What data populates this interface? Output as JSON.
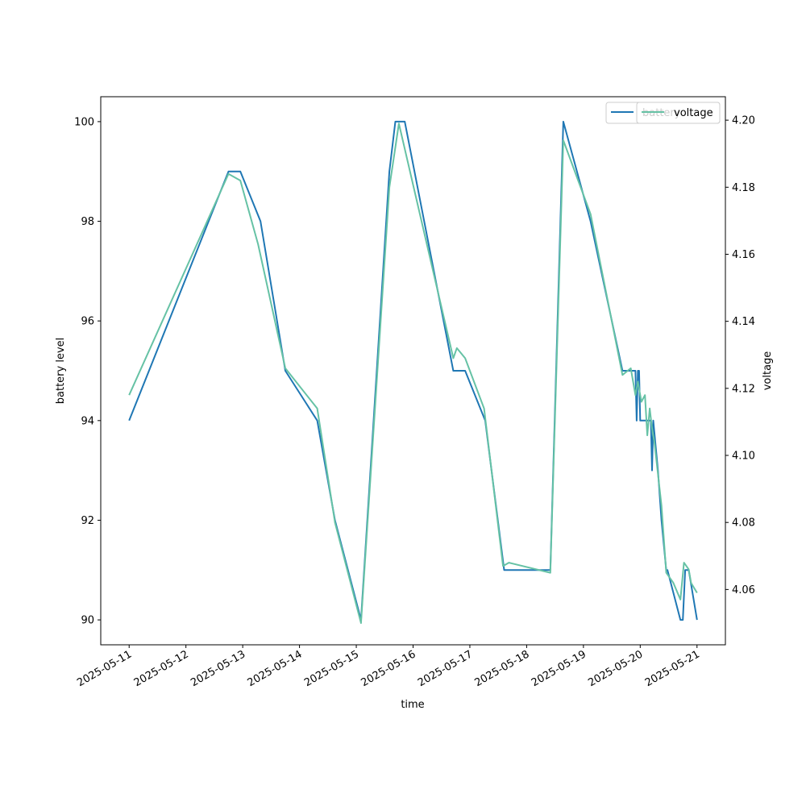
{
  "chart_data": {
    "type": "line",
    "xlabel": "time",
    "ylabel": "battery level",
    "y2label": "voltage",
    "x_ticks": [
      "2025-05-11",
      "2025-05-12",
      "2025-05-13",
      "2025-05-14",
      "2025-05-15",
      "2025-05-16",
      "2025-05-17",
      "2025-05-18",
      "2025-05-19",
      "2025-05-20",
      "2025-05-21"
    ],
    "xlim": [
      "2025-05-10 12:00",
      "2025-05-21 12:00"
    ],
    "ylim": [
      89.5,
      100.5
    ],
    "y_ticks": [
      90,
      92,
      94,
      96,
      98,
      100
    ],
    "y2lim": [
      4.0435,
      4.207
    ],
    "y2_ticks": [
      "4.06",
      "4.08",
      "4.10",
      "4.12",
      "4.14",
      "4.16",
      "4.18",
      "4.20"
    ],
    "legend_position": "top-right",
    "series": [
      {
        "name": "battery",
        "axis": "left",
        "color": "#1f77b4",
        "points": [
          [
            "2025-05-11 00:00",
            94
          ],
          [
            "2025-05-12 18:00",
            99
          ],
          [
            "2025-05-12 23:00",
            99
          ],
          [
            "2025-05-13 07:30",
            98
          ],
          [
            "2025-05-13 18:00",
            95
          ],
          [
            "2025-05-14 07:30",
            94
          ],
          [
            "2025-05-14 15:00",
            92
          ],
          [
            "2025-05-15 02:00",
            90
          ],
          [
            "2025-05-15 14:00",
            99
          ],
          [
            "2025-05-15 16:30",
            100
          ],
          [
            "2025-05-15 20:30",
            100
          ],
          [
            "2025-05-16 17:00",
            95
          ],
          [
            "2025-05-16 22:00",
            95
          ],
          [
            "2025-05-17 06:30",
            94
          ],
          [
            "2025-05-17 14:30",
            91
          ],
          [
            "2025-05-18 10:00",
            91
          ],
          [
            "2025-05-18 15:30",
            100
          ],
          [
            "2025-05-19 03:00",
            98
          ],
          [
            "2025-05-19 16:30",
            95
          ],
          [
            "2025-05-19 22:00",
            95
          ],
          [
            "2025-05-19 22:30",
            94
          ],
          [
            "2025-05-19 23:00",
            95
          ],
          [
            "2025-05-19 23:30",
            95
          ],
          [
            "2025-05-20 00:00",
            94
          ],
          [
            "2025-05-20 04:30",
            94
          ],
          [
            "2025-05-20 05:00",
            93
          ],
          [
            "2025-05-20 05:30",
            94
          ],
          [
            "2025-05-20 07:30",
            93
          ],
          [
            "2025-05-20 09:00",
            92
          ],
          [
            "2025-05-20 11:00",
            91
          ],
          [
            "2025-05-20 11:30",
            91
          ],
          [
            "2025-05-20 17:00",
            90
          ],
          [
            "2025-05-20 18:00",
            90
          ],
          [
            "2025-05-20 19:00",
            91
          ],
          [
            "2025-05-20 20:30",
            91
          ],
          [
            "2025-05-21 00:00",
            90
          ]
        ]
      },
      {
        "name": "voltage",
        "axis": "right",
        "color": "#66c2a5",
        "points": [
          [
            "2025-05-11 00:00",
            4.118
          ],
          [
            "2025-05-12 18:00",
            4.184
          ],
          [
            "2025-05-12 23:00",
            4.182
          ],
          [
            "2025-05-13 06:30",
            4.163
          ],
          [
            "2025-05-13 18:00",
            4.126
          ],
          [
            "2025-05-14 07:30",
            4.114
          ],
          [
            "2025-05-14 15:00",
            4.08
          ],
          [
            "2025-05-15 02:00",
            4.05
          ],
          [
            "2025-05-15 14:00",
            4.18
          ],
          [
            "2025-05-15 18:00",
            4.199
          ],
          [
            "2025-05-16 17:00",
            4.129
          ],
          [
            "2025-05-16 18:30",
            4.132
          ],
          [
            "2025-05-16 22:00",
            4.129
          ],
          [
            "2025-05-17 06:00",
            4.114
          ],
          [
            "2025-05-17 14:00",
            4.067
          ],
          [
            "2025-05-17 16:30",
            4.068
          ],
          [
            "2025-05-18 10:00",
            4.065
          ],
          [
            "2025-05-18 15:30",
            4.194
          ],
          [
            "2025-05-19 03:00",
            4.172
          ],
          [
            "2025-05-19 16:30",
            4.124
          ],
          [
            "2025-05-19 20:00",
            4.126
          ],
          [
            "2025-05-19 22:00",
            4.118
          ],
          [
            "2025-05-19 23:00",
            4.122
          ],
          [
            "2025-05-20 00:30",
            4.116
          ],
          [
            "2025-05-20 02:00",
            4.118
          ],
          [
            "2025-05-20 03:00",
            4.106
          ],
          [
            "2025-05-20 04:00",
            4.114
          ],
          [
            "2025-05-20 05:00",
            4.108
          ],
          [
            "2025-05-20 06:00",
            4.104
          ],
          [
            "2025-05-20 09:00",
            4.085
          ],
          [
            "2025-05-20 11:00",
            4.065
          ],
          [
            "2025-05-20 14:00",
            4.062
          ],
          [
            "2025-05-20 17:00",
            4.057
          ],
          [
            "2025-05-20 18:30",
            4.068
          ],
          [
            "2025-05-20 20:30",
            4.066
          ],
          [
            "2025-05-20 21:30",
            4.062
          ],
          [
            "2025-05-21 00:00",
            4.059
          ]
        ]
      }
    ]
  }
}
